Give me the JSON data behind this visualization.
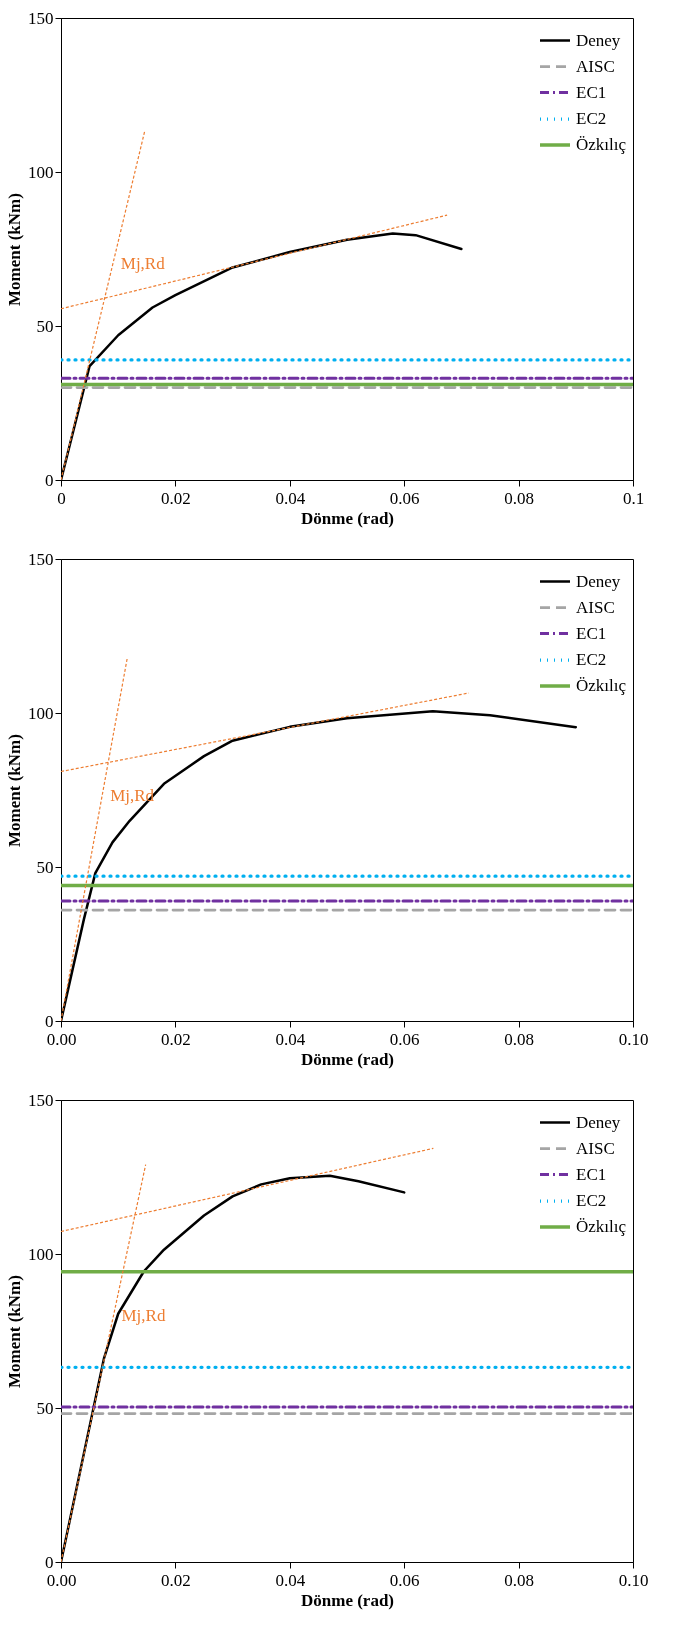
{
  "chart_data": [
    {
      "type": "line",
      "xlabel": "Dönme (rad)",
      "ylabel": "Moment (kNm)",
      "xlim": [
        0,
        0.1
      ],
      "ylim": [
        0,
        150
      ],
      "xticks": [
        0,
        0.02,
        0.04,
        0.06,
        0.08,
        0.1
      ],
      "yticks": [
        0,
        50,
        100,
        150
      ],
      "legend": "top right",
      "marker": "none",
      "grid": false,
      "series": [
        {
          "name": "Deney",
          "color": "#000000",
          "line_style": "solid",
          "x": [
            0,
            0.005,
            0.01,
            0.016,
            0.02,
            0.03,
            0.04,
            0.05,
            0.058,
            0.062,
            0.07
          ],
          "values": [
            0,
            37,
            47,
            56,
            60,
            69,
            74,
            78,
            80,
            79.5,
            75
          ]
        },
        {
          "name": "AISC",
          "color": "#a5a5a5",
          "line_style": "dashed",
          "x": [
            0,
            0.1
          ],
          "values": [
            30,
            30
          ]
        },
        {
          "name": "EC1",
          "color": "#7030a0",
          "line_style": "dashdot",
          "x": [
            0,
            0.1
          ],
          "values": [
            33,
            33
          ]
        },
        {
          "name": "EC2",
          "color": "#00b0f0",
          "line_style": "dotted",
          "x": [
            0,
            0.1
          ],
          "values": [
            39,
            39
          ]
        },
        {
          "name": "Özkılıç",
          "color": "#70ad47",
          "line_style": "solid",
          "x": [
            0,
            0.1
          ],
          "values": [
            31,
            31
          ]
        },
        {
          "color": "#ed7d31",
          "line_style": "dashed",
          "x": [
            0,
            0.0146
          ],
          "values": [
            0,
            113
          ]
        },
        {
          "color": "#ed7d31",
          "line_style": "dashed",
          "x": [
            0,
            0.0675
          ],
          "values": [
            55.6,
            86
          ]
        }
      ],
      "annotations": [
        "Mj,Rd"
      ]
    },
    {
      "type": "line",
      "xlabel": "Dönme (rad)",
      "ylabel": "Moment (kNm)",
      "xlim": [
        0,
        0.1
      ],
      "ylim": [
        0,
        150
      ],
      "xticks": [
        {
          "value": 0,
          "label": "0.00"
        },
        {
          "value": 0.02,
          "label": "0.02"
        },
        {
          "value": 0.04,
          "label": "0.04"
        },
        {
          "value": 0.06,
          "label": "0.06"
        },
        {
          "value": 0.08,
          "label": "0.08"
        },
        {
          "value": 0.1,
          "label": "0.10"
        }
      ],
      "yticks": [
        0,
        50,
        100,
        150
      ],
      "legend": "top right",
      "marker": "none",
      "grid": false,
      "series": [
        {
          "name": "Deney",
          "color": "#000000",
          "line_style": "solid",
          "x": [
            0,
            0.004,
            0.006,
            0.009,
            0.012,
            0.018,
            0.025,
            0.03,
            0.04,
            0.05,
            0.065,
            0.075,
            0.09
          ],
          "values": [
            0,
            33,
            48,
            58,
            65,
            77,
            86,
            91,
            95.5,
            98.3,
            100.6,
            99.3,
            95.4
          ]
        },
        {
          "name": "AISC",
          "color": "#a5a5a5",
          "line_style": "dashed",
          "x": [
            0,
            0.1
          ],
          "values": [
            36,
            36
          ]
        },
        {
          "name": "EC1",
          "color": "#7030a0",
          "line_style": "dashdot",
          "x": [
            0,
            0.1
          ],
          "values": [
            39,
            39
          ]
        },
        {
          "name": "EC2",
          "color": "#00b0f0",
          "line_style": "dotted",
          "x": [
            0,
            0.1
          ],
          "values": [
            47,
            47
          ]
        },
        {
          "name": "Özkılıç",
          "color": "#70ad47",
          "line_style": "solid",
          "x": [
            0,
            0.1
          ],
          "values": [
            44,
            44
          ]
        },
        {
          "color": "#ed7d31",
          "line_style": "dashed",
          "x": [
            0,
            0.0116
          ],
          "values": [
            0,
            118
          ]
        },
        {
          "color": "#ed7d31",
          "line_style": "dashed",
          "x": [
            0,
            0.0713
          ],
          "values": [
            81,
            106.5
          ]
        }
      ],
      "annotations": [
        "Mj,Rd"
      ]
    },
    {
      "type": "line",
      "xlabel": "Dönme (rad)",
      "ylabel": "Moment (kNm)",
      "xlim": [
        0,
        0.1
      ],
      "ylim": [
        0,
        150
      ],
      "xticks": [
        {
          "value": 0,
          "label": "0.00"
        },
        {
          "value": 0.02,
          "label": "0.02"
        },
        {
          "value": 0.04,
          "label": "0.04"
        },
        {
          "value": 0.06,
          "label": "0.06"
        },
        {
          "value": 0.08,
          "label": "0.08"
        },
        {
          "value": 0.1,
          "label": "0.10"
        }
      ],
      "yticks": [
        0,
        50,
        100,
        150
      ],
      "legend": "top right",
      "marker": "none",
      "grid": false,
      "series": [
        {
          "name": "Deney",
          "color": "#000000",
          "line_style": "solid",
          "x": [
            0,
            0.0075,
            0.01,
            0.0145,
            0.018,
            0.025,
            0.03,
            0.035,
            0.04,
            0.047,
            0.052,
            0.06
          ],
          "values": [
            0,
            66,
            80.6,
            94.4,
            101.4,
            112.5,
            118.7,
            122.6,
            124.6,
            125.4,
            123.6,
            120
          ]
        },
        {
          "name": "AISC",
          "color": "#a5a5a5",
          "line_style": "dashed",
          "x": [
            0,
            0.1
          ],
          "values": [
            48.2,
            48.2
          ]
        },
        {
          "name": "EC1",
          "color": "#7030a0",
          "line_style": "dashdot",
          "x": [
            0,
            0.1
          ],
          "values": [
            50.3,
            50.3
          ]
        },
        {
          "name": "EC2",
          "color": "#00b0f0",
          "line_style": "dotted",
          "x": [
            0,
            0.1
          ],
          "values": [
            63.2,
            63.2
          ]
        },
        {
          "name": "Özkılıç",
          "color": "#70ad47",
          "line_style": "solid",
          "x": [
            0,
            0.1
          ],
          "values": [
            94.2,
            94.2
          ]
        },
        {
          "color": "#ed7d31",
          "line_style": "dashed",
          "x": [
            0,
            0.0148
          ],
          "values": [
            0,
            129
          ]
        },
        {
          "color": "#ed7d31",
          "line_style": "dashed",
          "x": [
            0,
            0.0651
          ],
          "values": [
            107.3,
            134.3
          ]
        }
      ],
      "annotations": [
        "Mj,Rd"
      ]
    }
  ]
}
